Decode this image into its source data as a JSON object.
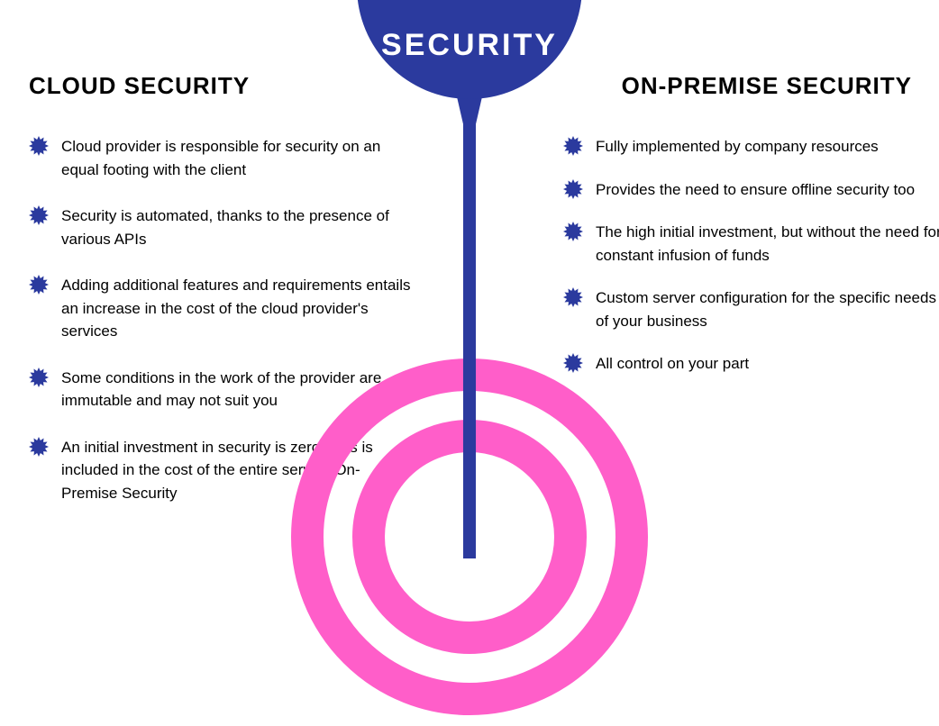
{
  "colors": {
    "accent": "#2b3a9e",
    "ring": "#ff5ec9",
    "text": "#000000",
    "background": "#ffffff"
  },
  "badge": {
    "title": "SECURITY"
  },
  "left": {
    "title": "CLOUD SECURITY",
    "items": [
      {
        "text": "Cloud provider is responsible for security on an equal footing with the client"
      },
      {
        "text": "Security is automated, thanks to the presence of various APIs"
      },
      {
        "text": "Adding additional features and requirements entails an increase in the cost of the cloud provider's services"
      },
      {
        "text": "Some conditions in the work of the provider are immutable and may not suit you"
      },
      {
        "text": "An initial investment in security is zero - this is included in the cost of the entire service On-Premise Security"
      }
    ]
  },
  "right": {
    "title": "ON-PREMISE SECURITY",
    "items": [
      {
        "text": "Fully implemented by company resources"
      },
      {
        "text": "Provides the need to ensure offline security too"
      },
      {
        "text": "The high initial investment, but without the need for constant infusion of funds"
      },
      {
        "text": "Custom server configuration for the specific needs of your business"
      },
      {
        "text": "All control on your part"
      }
    ]
  },
  "decor": {
    "ring_outer_radius": 180,
    "ring_stroke": 36,
    "ring_gap": 32
  }
}
